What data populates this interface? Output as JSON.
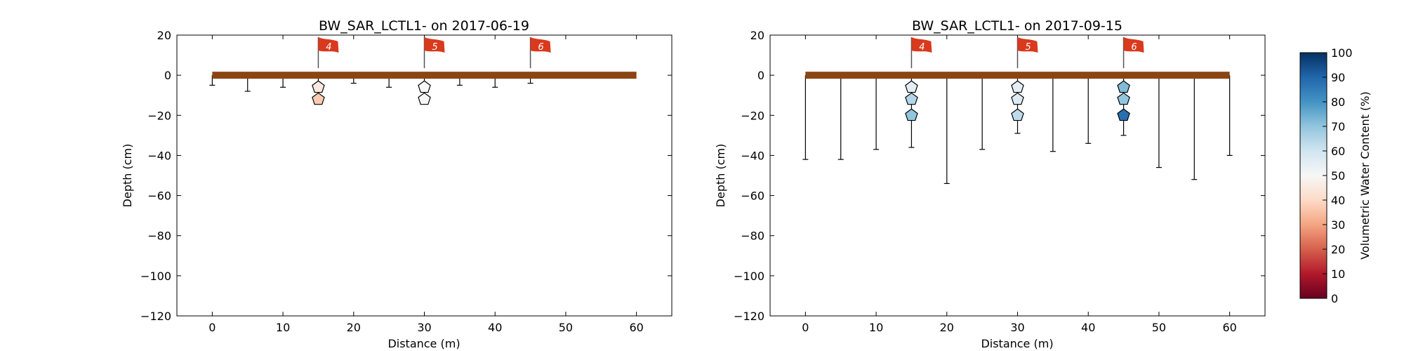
{
  "chart_data": [
    {
      "type": "scatter",
      "title": "BW_SAR_LCTL1- on 2017-06-19",
      "xlabel": "Distance (m)",
      "ylabel": "Depth (cm)",
      "xlim": [
        -5,
        65
      ],
      "ylim": [
        -120,
        20
      ],
      "xticks": [
        "0",
        "10",
        "20",
        "30",
        "40",
        "50",
        "60"
      ],
      "yticks": [
        "20",
        "0",
        "−20",
        "−40",
        "−60",
        "−80",
        "−100",
        "−120"
      ],
      "ground": {
        "x_start": 0,
        "x_end": 60,
        "depth": 0
      },
      "flags": [
        {
          "label": "4",
          "x": 15
        },
        {
          "label": "5",
          "x": 30
        },
        {
          "label": "6",
          "x": 45
        }
      ],
      "probe_lines": [
        {
          "x": 0,
          "depth": -5
        },
        {
          "x": 5,
          "depth": -8
        },
        {
          "x": 10,
          "depth": -6
        },
        {
          "x": 15,
          "depth": -5
        },
        {
          "x": 20,
          "depth": -4
        },
        {
          "x": 25,
          "depth": -6
        },
        {
          "x": 30,
          "depth": -4
        },
        {
          "x": 35,
          "depth": -5
        },
        {
          "x": 40,
          "depth": -6
        },
        {
          "x": 45,
          "depth": -4
        }
      ],
      "sensors": [
        {
          "x": 15,
          "depth": -6,
          "vwc": 45
        },
        {
          "x": 15,
          "depth": -12,
          "vwc": 37
        },
        {
          "x": 30,
          "depth": -6,
          "vwc": 50
        },
        {
          "x": 30,
          "depth": -12,
          "vwc": 50
        }
      ]
    },
    {
      "type": "scatter",
      "title": "BW_SAR_LCTL1- on 2017-09-15",
      "xlabel": "Distance (m)",
      "ylabel": "Depth (cm)",
      "xlim": [
        -5,
        65
      ],
      "ylim": [
        -120,
        20
      ],
      "xticks": [
        "0",
        "10",
        "20",
        "30",
        "40",
        "50",
        "60"
      ],
      "yticks": [
        "20",
        "0",
        "−20",
        "−40",
        "−60",
        "−80",
        "−100",
        "−120"
      ],
      "ground": {
        "x_start": 0,
        "x_end": 60,
        "depth": 0
      },
      "flags": [
        {
          "label": "4",
          "x": 15
        },
        {
          "label": "5",
          "x": 30
        },
        {
          "label": "6",
          "x": 45
        }
      ],
      "probe_lines": [
        {
          "x": 0,
          "depth": -42
        },
        {
          "x": 5,
          "depth": -42
        },
        {
          "x": 10,
          "depth": -37
        },
        {
          "x": 15,
          "depth": -36
        },
        {
          "x": 20,
          "depth": -54
        },
        {
          "x": 25,
          "depth": -37
        },
        {
          "x": 30,
          "depth": -29
        },
        {
          "x": 35,
          "depth": -38
        },
        {
          "x": 40,
          "depth": -34
        },
        {
          "x": 45,
          "depth": -30
        },
        {
          "x": 50,
          "depth": -46
        },
        {
          "x": 55,
          "depth": -52
        },
        {
          "x": 60,
          "depth": -40
        }
      ],
      "sensors": [
        {
          "x": 15,
          "depth": -6,
          "vwc": 55
        },
        {
          "x": 15,
          "depth": -12,
          "vwc": 65
        },
        {
          "x": 15,
          "depth": -20,
          "vwc": 70
        },
        {
          "x": 30,
          "depth": -6,
          "vwc": 55
        },
        {
          "x": 30,
          "depth": -12,
          "vwc": 57
        },
        {
          "x": 30,
          "depth": -20,
          "vwc": 63
        },
        {
          "x": 45,
          "depth": -6,
          "vwc": 72
        },
        {
          "x": 45,
          "depth": -12,
          "vwc": 70
        },
        {
          "x": 45,
          "depth": -20,
          "vwc": 88
        }
      ]
    }
  ],
  "colorbar": {
    "label": "Volumetric Water Content (%)",
    "min": 0,
    "max": 100,
    "ticks": [
      "0",
      "10",
      "20",
      "30",
      "40",
      "50",
      "60",
      "70",
      "80",
      "90",
      "100"
    ]
  },
  "colors": {
    "ground": "#8b4513",
    "flag": "#d9391c",
    "axis": "#000000"
  }
}
